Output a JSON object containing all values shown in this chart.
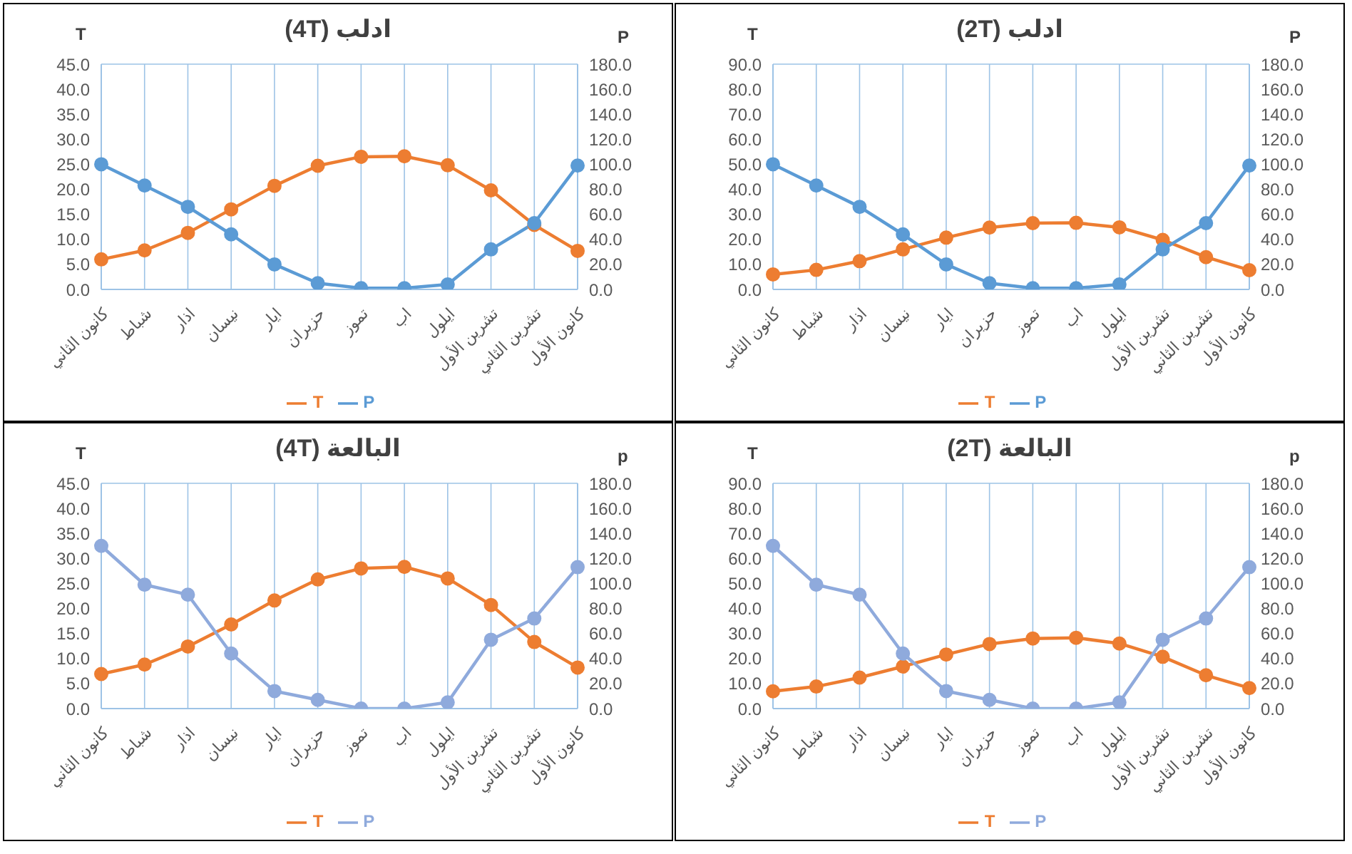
{
  "chart_data": [
    {
      "type": "line",
      "title": "ادلب (4T)",
      "ylabel": "T",
      "y2label": "P",
      "categories": [
        "كانون الثاني",
        "شباط",
        "اذار",
        "نيسان",
        "ايار",
        "حزيران",
        "تموز",
        "اب",
        "ايلول",
        "تشرين الأول",
        "تشرين الثاني",
        "كانون الأول"
      ],
      "series": [
        {
          "name": "T",
          "color": "#ed7d31",
          "values": [
            6.0,
            7.8,
            11.3,
            16.0,
            20.7,
            24.7,
            26.5,
            26.6,
            24.8,
            19.8,
            12.9,
            7.7
          ]
        },
        {
          "name": "P",
          "color": "#5b9bd5",
          "axis": "y2",
          "values": [
            100,
            83,
            66,
            44,
            20,
            5,
            1,
            1,
            4,
            32,
            53,
            99
          ]
        }
      ],
      "ylim": [
        0,
        45
      ],
      "yticks": [
        {
          "value": 0,
          "label": "0.0"
        },
        {
          "value": 5,
          "label": "5.0"
        },
        {
          "value": 10,
          "label": "10.0"
        },
        {
          "value": 15,
          "label": "15.0"
        },
        {
          "value": 20,
          "label": "20.0"
        },
        {
          "value": 25,
          "label": "25.0"
        },
        {
          "value": 30,
          "label": "30.0"
        },
        {
          "value": 35,
          "label": "35.0"
        },
        {
          "value": 40,
          "label": "40.0"
        },
        {
          "value": 45,
          "label": "45.0"
        }
      ],
      "y2lim": [
        0,
        180
      ],
      "y2ticks": [
        {
          "value": 0,
          "label": "0.0"
        },
        {
          "value": 20,
          "label": "20.0"
        },
        {
          "value": 40,
          "label": "40.0"
        },
        {
          "value": 60,
          "label": "60.0"
        },
        {
          "value": 80,
          "label": "80.0"
        },
        {
          "value": 100,
          "label": "100.0"
        },
        {
          "value": 120,
          "label": "120.0"
        },
        {
          "value": 140,
          "label": "140.0"
        },
        {
          "value": 160,
          "label": "160.0"
        },
        {
          "value": 180,
          "label": "180.0"
        }
      ],
      "grid": true,
      "legend": "bottom",
      "marker": "circle"
    },
    {
      "type": "line",
      "title": "ادلب (2T)",
      "ylabel": "T",
      "y2label": "P",
      "categories": [
        "كانون الثاني",
        "شباط",
        "اذار",
        "نيسان",
        "ايار",
        "حزيران",
        "تموز",
        "اب",
        "ايلول",
        "تشرين الأول",
        "تشرين الثاني",
        "كانون الأول"
      ],
      "series": [
        {
          "name": "T",
          "color": "#ed7d31",
          "values": [
            6.0,
            7.8,
            11.3,
            16.0,
            20.7,
            24.7,
            26.5,
            26.6,
            24.8,
            19.8,
            12.9,
            7.7
          ]
        },
        {
          "name": "P",
          "color": "#5b9bd5",
          "axis": "y2",
          "values": [
            100,
            83,
            66,
            44,
            20,
            5,
            1,
            1,
            4,
            32,
            53,
            99
          ]
        }
      ],
      "ylim": [
        0,
        90
      ],
      "yticks": [
        {
          "value": 0,
          "label": "0.0"
        },
        {
          "value": 10,
          "label": "10.0"
        },
        {
          "value": 20,
          "label": "20.0"
        },
        {
          "value": 30,
          "label": "30.0"
        },
        {
          "value": 40,
          "label": "40.0"
        },
        {
          "value": 50,
          "label": "50.0"
        },
        {
          "value": 60,
          "label": "60.0"
        },
        {
          "value": 70,
          "label": "70.0"
        },
        {
          "value": 80,
          "label": "80.0"
        },
        {
          "value": 90,
          "label": "90.0"
        }
      ],
      "y2lim": [
        0,
        180
      ],
      "y2ticks": [
        {
          "value": 0,
          "label": "0.0"
        },
        {
          "value": 20,
          "label": "20.0"
        },
        {
          "value": 40,
          "label": "40.0"
        },
        {
          "value": 60,
          "label": "60.0"
        },
        {
          "value": 80,
          "label": "80.0"
        },
        {
          "value": 100,
          "label": "100.0"
        },
        {
          "value": 120,
          "label": "120.0"
        },
        {
          "value": 140,
          "label": "140.0"
        },
        {
          "value": 160,
          "label": "160.0"
        },
        {
          "value": 180,
          "label": "180.0"
        }
      ],
      "grid": true,
      "legend": "bottom",
      "marker": "circle"
    },
    {
      "type": "line",
      "title": "البالعة (4T)",
      "ylabel": "T",
      "y2label": "p",
      "categories": [
        "كانون الثاني",
        "شباط",
        "اذار",
        "نيسان",
        "ايار",
        "حزيران",
        "تموز",
        "اب",
        "ايلول",
        "تشرين الأول",
        "تشرين الثاني",
        "كانون الأول"
      ],
      "series": [
        {
          "name": "T",
          "color": "#ed7d31",
          "values": [
            6.9,
            8.8,
            12.4,
            16.8,
            21.6,
            25.8,
            28.0,
            28.3,
            26.0,
            20.7,
            13.3,
            8.2
          ]
        },
        {
          "name": "P",
          "color": "#8faadc",
          "axis": "y2",
          "values": [
            130,
            99,
            91,
            44,
            14,
            7,
            0,
            0,
            5,
            55,
            72,
            113
          ]
        }
      ],
      "ylim": [
        0,
        45
      ],
      "yticks": [
        {
          "value": 0,
          "label": "0.0"
        },
        {
          "value": 5,
          "label": "5.0"
        },
        {
          "value": 10,
          "label": "10.0"
        },
        {
          "value": 15,
          "label": "15.0"
        },
        {
          "value": 20,
          "label": "20.0"
        },
        {
          "value": 25,
          "label": "25.0"
        },
        {
          "value": 30,
          "label": "30.0"
        },
        {
          "value": 35,
          "label": "35.0"
        },
        {
          "value": 40,
          "label": "40.0"
        },
        {
          "value": 45,
          "label": "45.0"
        }
      ],
      "y2lim": [
        0,
        180
      ],
      "y2ticks": [
        {
          "value": 0,
          "label": "0.0"
        },
        {
          "value": 20,
          "label": "20.0"
        },
        {
          "value": 40,
          "label": "40.0"
        },
        {
          "value": 60,
          "label": "60.0"
        },
        {
          "value": 80,
          "label": "80.0"
        },
        {
          "value": 100,
          "label": "100.0"
        },
        {
          "value": 120,
          "label": "120.0"
        },
        {
          "value": 140,
          "label": "140.0"
        },
        {
          "value": 160,
          "label": "160.0"
        },
        {
          "value": 180,
          "label": "180.0"
        }
      ],
      "grid": true,
      "legend": "bottom",
      "marker": "circle"
    },
    {
      "type": "line",
      "title": "البالعة (2T)",
      "ylabel": "T",
      "y2label": "p",
      "categories": [
        "كانون الثاني",
        "شباط",
        "اذار",
        "نيسان",
        "ايار",
        "حزيران",
        "تموز",
        "اب",
        "ايلول",
        "تشرين الأول",
        "تشرين الثاني",
        "كانون الأول"
      ],
      "series": [
        {
          "name": "T",
          "color": "#ed7d31",
          "values": [
            6.9,
            8.8,
            12.4,
            16.8,
            21.6,
            25.8,
            28.0,
            28.3,
            26.0,
            20.7,
            13.3,
            8.2
          ]
        },
        {
          "name": "P",
          "color": "#8faadc",
          "axis": "y2",
          "values": [
            130,
            99,
            91,
            44,
            14,
            7,
            0,
            0,
            5,
            55,
            72,
            113
          ]
        }
      ],
      "ylim": [
        0,
        90
      ],
      "yticks": [
        {
          "value": 0,
          "label": "0.0"
        },
        {
          "value": 10,
          "label": "10.0"
        },
        {
          "value": 20,
          "label": "20.0"
        },
        {
          "value": 30,
          "label": "30.0"
        },
        {
          "value": 40,
          "label": "40.0"
        },
        {
          "value": 50,
          "label": "50.0"
        },
        {
          "value": 60,
          "label": "60.0"
        },
        {
          "value": 70,
          "label": "70.0"
        },
        {
          "value": 80,
          "label": "80.0"
        },
        {
          "value": 90,
          "label": "90.0"
        }
      ],
      "y2lim": [
        0,
        180
      ],
      "y2ticks": [
        {
          "value": 0,
          "label": "0.0"
        },
        {
          "value": 20,
          "label": "20.0"
        },
        {
          "value": 40,
          "label": "40.0"
        },
        {
          "value": 60,
          "label": "60.0"
        },
        {
          "value": 80,
          "label": "80.0"
        },
        {
          "value": 100,
          "label": "100.0"
        },
        {
          "value": 120,
          "label": "120.0"
        },
        {
          "value": 140,
          "label": "140.0"
        },
        {
          "value": 160,
          "label": "160.0"
        },
        {
          "value": 180,
          "label": "180.0"
        }
      ],
      "grid": true,
      "legend": "bottom",
      "marker": "circle"
    }
  ]
}
